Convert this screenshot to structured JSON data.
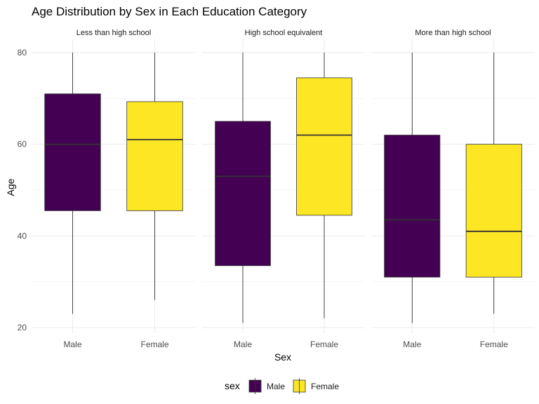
{
  "chart_data": {
    "type": "boxplot",
    "title": "Age Distribution by Sex in Each Education Category",
    "xlabel": "Sex",
    "ylabel": "Age",
    "ylim": [
      20,
      80
    ],
    "yticks": [
      20,
      40,
      60,
      80
    ],
    "grid": true,
    "legend": {
      "title": "sex",
      "position": "bottom",
      "entries": [
        {
          "label": "Male",
          "color": "#440154"
        },
        {
          "label": "Female",
          "color": "#FDE725"
        }
      ]
    },
    "facets": [
      {
        "label": "Less than high school",
        "categories": [
          "Male",
          "Female"
        ],
        "boxes": [
          {
            "category": "Male",
            "min": 23,
            "q1": 45.5,
            "median": 60,
            "q3": 71,
            "max": 80
          },
          {
            "category": "Female",
            "min": 26,
            "q1": 45.5,
            "median": 61,
            "q3": 69.3,
            "max": 80
          }
        ]
      },
      {
        "label": "High school equivalent",
        "categories": [
          "Male",
          "Female"
        ],
        "boxes": [
          {
            "category": "Male",
            "min": 21,
            "q1": 33.5,
            "median": 53,
            "q3": 65,
            "max": 80
          },
          {
            "category": "Female",
            "min": 22,
            "q1": 44.5,
            "median": 62,
            "q3": 74.5,
            "max": 80
          }
        ]
      },
      {
        "label": "More than high school",
        "categories": [
          "Male",
          "Female"
        ],
        "boxes": [
          {
            "category": "Male",
            "min": 21,
            "q1": 31,
            "median": 43.5,
            "q3": 62,
            "max": 80
          },
          {
            "category": "Female",
            "min": 23,
            "q1": 31,
            "median": 41,
            "q3": 60,
            "max": 80
          }
        ]
      }
    ]
  }
}
